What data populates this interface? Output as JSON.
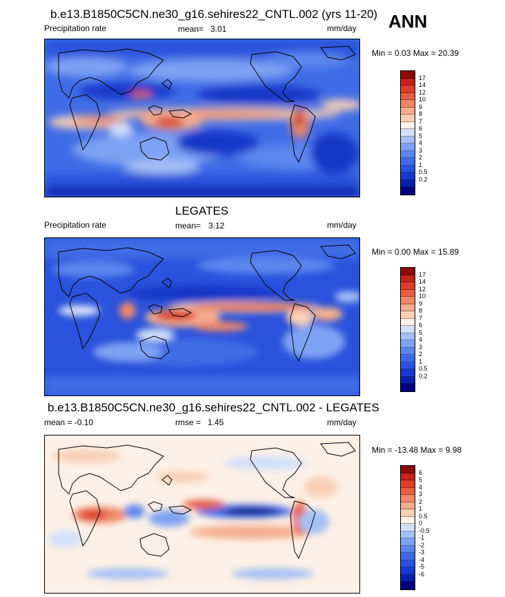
{
  "season_label": "ANN",
  "palette": {
    "abs": [
      "#00007f",
      "#0a1fa8",
      "#1838c8",
      "#2a52dc",
      "#3f6ce6",
      "#5b86ee",
      "#7ea2f3",
      "#a6c0f6",
      "#d2e0fa",
      "#fdf0e6",
      "#f9d0b6",
      "#f5ae8f",
      "#ef8768",
      "#e55f44",
      "#d9402b",
      "#c0241b",
      "#8d0b0b"
    ],
    "diff": [
      "#00007f",
      "#0a1fa8",
      "#1838c8",
      "#2a52dc",
      "#3f6ce6",
      "#5b86ee",
      "#7ea2f3",
      "#a6c0f6",
      "#d2e0fa",
      "#fdf0e6",
      "#f9d0b6",
      "#f5ae8f",
      "#ef8768",
      "#e55f44",
      "#d9402b",
      "#c0241b",
      "#8d0b0b"
    ]
  },
  "panels": [
    {
      "title": "b.e13.B1850C5CN.ne30_g16.sehires22_CNTL.002 (yrs 11-20)",
      "left_label": "Precipitation rate",
      "stat1": "mean=",
      "stat1_value": "3.01",
      "units": "mm/day",
      "minmax": "Min =   0.03 Max =  20.39",
      "colorbar_ticks": [
        "17",
        "14",
        "12",
        "10",
        "9",
        "8",
        "7",
        "6",
        "5",
        "4",
        "3",
        "2",
        "1",
        "0.5",
        "0.2"
      ]
    },
    {
      "title": "LEGATES",
      "left_label": "Precipitation rate",
      "stat1": "mean=",
      "stat1_value": "3.12",
      "units": "mm/day",
      "minmax": "Min =   0.00 Max =  15.89",
      "colorbar_ticks": [
        "17",
        "14",
        "12",
        "10",
        "9",
        "8",
        "7",
        "6",
        "5",
        "4",
        "3",
        "2",
        "1",
        "0.5",
        "0.2"
      ]
    },
    {
      "title": "b.e13.B1850C5CN.ne30_g16.sehires22_CNTL.002 - LEGATES",
      "left_label": "mean =  -0.10",
      "stat1": "rmse =",
      "stat1_value": "1.45",
      "units": "mm/day",
      "minmax": "Min = -13.48 Max =   9.98",
      "colorbar_ticks": [
        "6",
        "5",
        "4",
        "3",
        "2",
        "1",
        "0.5",
        "0",
        "-0.5",
        "-1",
        "-2",
        "-3",
        "-4",
        "-5",
        "-6"
      ]
    }
  ],
  "chart_data": [
    {
      "type": "heatmap",
      "title": "b.e13.B1850C5CN.ne30_g16.sehires22_CNTL.002 (yrs 11-20)",
      "variable": "Precipitation rate",
      "units": "mm/day",
      "mean": 3.01,
      "min": 0.03,
      "max": 20.39,
      "contour_levels": [
        0.2,
        0.5,
        1,
        2,
        3,
        4,
        5,
        6,
        7,
        8,
        9,
        10,
        12,
        14,
        17
      ]
    },
    {
      "type": "heatmap",
      "title": "LEGATES",
      "variable": "Precipitation rate",
      "units": "mm/day",
      "mean": 3.12,
      "min": 0.0,
      "max": 15.89,
      "contour_levels": [
        0.2,
        0.5,
        1,
        2,
        3,
        4,
        5,
        6,
        7,
        8,
        9,
        10,
        12,
        14,
        17
      ]
    },
    {
      "type": "heatmap",
      "title": "b.e13.B1850C5CN.ne30_g16.sehires22_CNTL.002 - LEGATES",
      "units": "mm/day",
      "mean": -0.1,
      "rmse": 1.45,
      "min": -13.48,
      "max": 9.98,
      "contour_levels": [
        -6,
        -5,
        -4,
        -3,
        -2,
        -1,
        -0.5,
        0,
        0.5,
        1,
        2,
        3,
        4,
        5,
        6
      ]
    }
  ]
}
